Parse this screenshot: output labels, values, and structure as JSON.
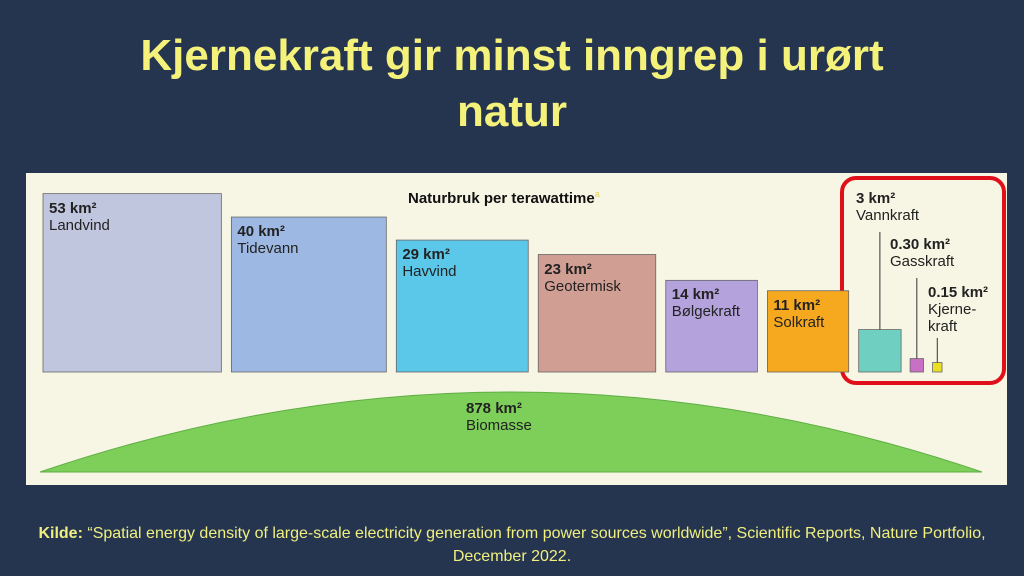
{
  "chart_data": {
    "type": "area-squares",
    "title": "Kjernekraft gir minst inngrep i urørt natur",
    "subtitle": "Naturbruk per terawattime",
    "subtitle_mark": "a",
    "categories": [
      "Landvind",
      "Tidevann",
      "Havvind",
      "Geotermisk",
      "Bølgekraft",
      "Solkraft",
      "Vannkraft",
      "Gasskraft",
      "Kjerne-kraft"
    ],
    "values": [
      53,
      40,
      29,
      23,
      14,
      11,
      3,
      0.3,
      0.15
    ],
    "value_labels": [
      "53 km²",
      "40 km²",
      "29 km²",
      "23 km²",
      "14 km²",
      "11 km²",
      "3 km²",
      "0.30 km²",
      "0.15 km²"
    ],
    "colors": [
      "#c0c6de",
      "#9db8e3",
      "#5bc8ea",
      "#d19e93",
      "#b4a2dc",
      "#f6a81e",
      "#6fcfc0",
      "#c86fc6",
      "#e8e020"
    ],
    "biomass": {
      "name": "Biomasse",
      "value": 878,
      "value_label": "878 km²",
      "color": "#7dcf5a"
    },
    "source_label": "Kilde:",
    "source": "“Spatial energy density of large-scale electricity generation from power sources worldwide”, Scientific Reports, Nature Portfolio, December 2022."
  }
}
